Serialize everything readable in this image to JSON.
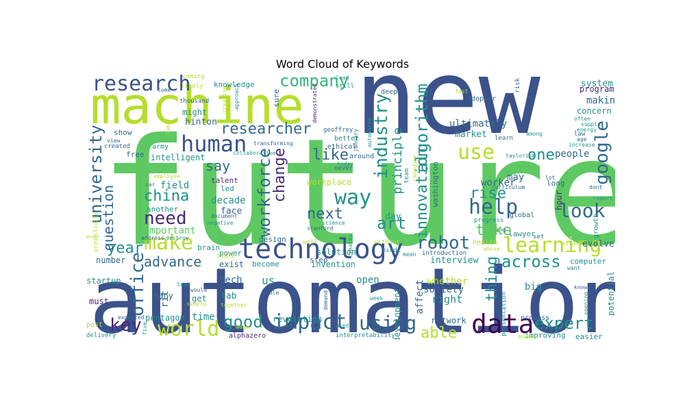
{
  "title": "Word Cloud of Keywords",
  "colors": {
    "navy": "#3b528b",
    "teal": "#21918c",
    "green": "#5ec962",
    "lime": "#b5de2b",
    "purple": "#440154",
    "blue": "#31688e",
    "sea": "#35b779",
    "violet": "#482878",
    "cyan": "#26828e",
    "yellow": "#dde318"
  },
  "words": [
    {
      "text": "future",
      "weight": 100,
      "color": "green"
    },
    {
      "text": "new",
      "weight": 94,
      "color": "navy"
    },
    {
      "text": "automation",
      "weight": 88,
      "color": "navy"
    },
    {
      "text": "machine",
      "weight": 58,
      "color": "lime"
    },
    {
      "text": "technology",
      "weight": 33,
      "color": "navy"
    },
    {
      "text": "research",
      "weight": 30,
      "color": "navy"
    },
    {
      "text": "human",
      "weight": 30,
      "color": "navy"
    },
    {
      "text": "make",
      "weight": 28,
      "color": "lime"
    },
    {
      "text": "data",
      "weight": 34,
      "color": "purple"
    },
    {
      "text": "learning",
      "weight": 27,
      "color": "lime"
    },
    {
      "text": "world",
      "weight": 27,
      "color": "lime"
    },
    {
      "text": "impact",
      "weight": 26,
      "color": "blue"
    },
    {
      "text": "using",
      "weight": 26,
      "color": "blue"
    },
    {
      "text": "help",
      "weight": 26,
      "color": "blue"
    },
    {
      "text": "company",
      "weight": 24,
      "color": "sea"
    },
    {
      "text": "researcher",
      "weight": 24,
      "color": "blue"
    },
    {
      "text": "google",
      "weight": 24,
      "color": "blue"
    },
    {
      "text": "expert",
      "weight": 24,
      "color": "teal"
    },
    {
      "text": "look",
      "weight": 24,
      "color": "blue"
    },
    {
      "text": "robot",
      "weight": 24,
      "color": "blue"
    },
    {
      "text": "industry",
      "weight": 24,
      "color": "teal"
    },
    {
      "text": "algorithm",
      "weight": 22,
      "color": "teal"
    },
    {
      "text": "use",
      "weight": 24,
      "color": "lime"
    },
    {
      "text": "university",
      "weight": 22,
      "color": "blue"
    },
    {
      "text": "workforce",
      "weight": 22,
      "color": "blue"
    },
    {
      "text": "way",
      "weight": 24,
      "color": "teal"
    },
    {
      "text": "need",
      "weight": 22,
      "color": "violet"
    },
    {
      "text": "key",
      "weight": 22,
      "color": "violet"
    },
    {
      "text": "good",
      "weight": 20,
      "color": "teal"
    },
    {
      "text": "office",
      "weight": 20,
      "color": "blue"
    },
    {
      "text": "china",
      "weight": 20,
      "color": "teal"
    },
    {
      "text": "across",
      "weight": 20,
      "color": "teal"
    },
    {
      "text": "art",
      "weight": 18,
      "color": "teal"
    },
    {
      "text": "year",
      "weight": 18,
      "color": "teal"
    },
    {
      "text": "next",
      "weight": 18,
      "color": "blue"
    },
    {
      "text": "change",
      "weight": 18,
      "color": "violet"
    },
    {
      "text": "innovation",
      "weight": 18,
      "color": "teal"
    },
    {
      "text": "take",
      "weight": 18,
      "color": "green"
    },
    {
      "text": "thing",
      "weight": 18,
      "color": "teal"
    },
    {
      "text": "able",
      "weight": 18,
      "color": "lime"
    },
    {
      "text": "rise",
      "weight": 18,
      "color": "teal"
    },
    {
      "text": "like",
      "weight": 18,
      "color": "blue"
    },
    {
      "text": "say",
      "weight": 16,
      "color": "blue"
    },
    {
      "text": "one",
      "weight": 18,
      "color": "teal"
    },
    {
      "text": "advance",
      "weight": 16,
      "color": "blue"
    },
    {
      "text": "question",
      "weight": 16,
      "color": "blue"
    },
    {
      "text": "principle",
      "weight": 14,
      "color": "teal"
    },
    {
      "text": "people",
      "weight": 13,
      "color": "blue"
    },
    {
      "text": "system",
      "weight": 12,
      "color": "teal"
    },
    {
      "text": "program",
      "weight": 11,
      "color": "violet"
    },
    {
      "text": "making",
      "weight": 12,
      "color": "blue"
    },
    {
      "text": "concern",
      "weight": 11,
      "color": "teal"
    },
    {
      "text": "knowledge",
      "weight": 10,
      "color": "teal"
    },
    {
      "text": "ultimately",
      "weight": 12,
      "color": "blue"
    },
    {
      "text": "market",
      "weight": 11,
      "color": "teal"
    },
    {
      "text": "hinton",
      "weight": 11,
      "color": "blue"
    },
    {
      "text": "intelligent",
      "weight": 11,
      "color": "teal"
    },
    {
      "text": "might",
      "weight": 11,
      "color": "teal"
    },
    {
      "text": "show",
      "weight": 10,
      "color": "blue"
    },
    {
      "text": "free",
      "weight": 10,
      "color": "blue"
    },
    {
      "text": "field",
      "weight": 12,
      "color": "teal"
    },
    {
      "text": "talent",
      "weight": 10,
      "color": "violet"
    },
    {
      "text": "led",
      "weight": 10,
      "color": "teal"
    },
    {
      "text": "decade",
      "weight": 12,
      "color": "teal"
    },
    {
      "text": "face",
      "weight": 11,
      "color": "blue"
    },
    {
      "text": "workplace",
      "weight": 11,
      "color": "lime"
    },
    {
      "text": "worker",
      "weight": 12,
      "color": "blue"
    },
    {
      "text": "may",
      "weight": 12,
      "color": "blue"
    },
    {
      "text": "long",
      "weight": 10,
      "color": "blue"
    },
    {
      "text": "hour",
      "weight": 10,
      "color": "violet"
    },
    {
      "text": "day",
      "weight": 12,
      "color": "teal"
    },
    {
      "text": "important",
      "weight": 12,
      "color": "green"
    },
    {
      "text": "another",
      "weight": 10,
      "color": "teal"
    },
    {
      "text": "interview",
      "weight": 12,
      "color": "teal"
    },
    {
      "text": "design",
      "weight": 10,
      "color": "blue"
    },
    {
      "text": "brain",
      "weight": 10,
      "color": "teal"
    },
    {
      "text": "exist",
      "weight": 10,
      "color": "blue"
    },
    {
      "text": "number",
      "weight": 10,
      "color": "blue"
    },
    {
      "text": "become",
      "weight": 10,
      "color": "teal"
    },
    {
      "text": "invention",
      "weight": 10,
      "color": "teal"
    },
    {
      "text": "evolve",
      "weight": 11,
      "color": "blue"
    },
    {
      "text": "computer",
      "weight": 9,
      "color": "teal"
    },
    {
      "text": "tech",
      "weight": 12,
      "color": "blue"
    },
    {
      "text": "startup",
      "weight": 10,
      "color": "teal"
    },
    {
      "text": "must",
      "weight": 10,
      "color": "violet"
    },
    {
      "text": "lab",
      "weight": 12,
      "color": "teal"
    },
    {
      "text": "open",
      "weight": 13,
      "color": "teal"
    },
    {
      "text": "us",
      "weight": 13,
      "color": "teal"
    },
    {
      "text": "whether",
      "weight": 12,
      "color": "lime"
    },
    {
      "text": "society",
      "weight": 12,
      "color": "blue"
    },
    {
      "text": "right",
      "weight": 13,
      "color": "teal"
    },
    {
      "text": "big",
      "weight": 12,
      "color": "teal"
    },
    {
      "text": "potential",
      "weight": 10,
      "color": "teal"
    },
    {
      "text": "development",
      "weight": 11,
      "color": "teal"
    },
    {
      "text": "affect",
      "weight": 11,
      "color": "blue"
    },
    {
      "text": "rit",
      "weight": 11,
      "color": "blue"
    },
    {
      "text": "get",
      "weight": 11,
      "color": "teal"
    },
    {
      "text": "time",
      "weight": 11,
      "color": "teal"
    },
    {
      "text": "pentagon",
      "weight": 11,
      "color": "teal"
    },
    {
      "text": "revolution",
      "weight": 10,
      "color": "teal"
    },
    {
      "text": "network",
      "weight": 10,
      "color": "blue"
    },
    {
      "text": "improving",
      "weight": 9,
      "color": "teal"
    },
    {
      "text": "easier",
      "weight": 9,
      "color": "teal"
    },
    {
      "text": "alphazero",
      "weight": 8,
      "color": "violet"
    },
    {
      "text": "interpretability",
      "weight": 7,
      "color": "teal"
    },
    {
      "text": "process",
      "weight": 8,
      "color": "blue"
    },
    {
      "text": "many",
      "weight": 10,
      "color": "blue"
    },
    {
      "text": "post",
      "weight": 8,
      "color": "lime"
    },
    {
      "text": "delivery",
      "weight": 8,
      "color": "teal"
    },
    {
      "text": "solution",
      "weight": 9,
      "color": "teal"
    },
    {
      "text": "step",
      "weight": 9,
      "color": "blue"
    },
    {
      "text": "better",
      "weight": 8,
      "color": "teal"
    },
    {
      "text": "ethical",
      "weight": 8,
      "color": "blue"
    },
    {
      "text": "around",
      "weight": 9,
      "color": "blue"
    },
    {
      "text": "never",
      "weight": 8,
      "color": "blue"
    },
    {
      "text": "today",
      "weight": 7,
      "color": "teal"
    },
    {
      "text": "still",
      "weight": 8,
      "color": "teal"
    },
    {
      "text": "sure",
      "weight": 9,
      "color": "blue"
    },
    {
      "text": "deep",
      "weight": 8,
      "color": "blue"
    },
    {
      "text": "adopter",
      "weight": 8,
      "color": "blue"
    },
    {
      "text": "fast",
      "weight": 7,
      "color": "lime"
    },
    {
      "text": "army",
      "weight": 8,
      "color": "teal"
    },
    {
      "text": "created",
      "weight": 7,
      "color": "blue"
    },
    {
      "text": "coming",
      "weight": 8,
      "color": "lime"
    },
    {
      "text": "thousand",
      "weight": 7,
      "color": "blue"
    },
    {
      "text": "geoffrey",
      "weight": 7,
      "color": "blue"
    },
    {
      "text": "power",
      "weight": 9,
      "color": "teal"
    },
    {
      "text": "hindi",
      "weight": 7,
      "color": "teal"
    },
    {
      "text": "global",
      "weight": 8,
      "color": "blue"
    },
    {
      "text": "lawyer",
      "weight": 8,
      "color": "teal"
    },
    {
      "text": "law",
      "weight": 8,
      "color": "blue"
    },
    {
      "text": "state",
      "weight": 8,
      "color": "lime"
    },
    {
      "text": "growth",
      "weight": 8,
      "color": "teal"
    },
    {
      "text": "set",
      "weight": 8,
      "color": "blue"
    },
    {
      "text": "report",
      "weight": 7,
      "color": "teal"
    },
    {
      "text": "dont",
      "weight": 7,
      "color": "blue"
    },
    {
      "text": "health",
      "weight": 8,
      "color": "lime"
    },
    {
      "text": "progress",
      "weight": 8,
      "color": "teal"
    },
    {
      "text": "learn",
      "weight": 7,
      "color": "blue"
    },
    {
      "text": "washington",
      "weight": 10,
      "color": "blue"
    },
    {
      "text": "collaborative",
      "weight": 7,
      "color": "teal"
    },
    {
      "text": "transforming",
      "weight": 7,
      "color": "blue"
    },
    {
      "text": "employee",
      "weight": 7,
      "color": "lime"
    },
    {
      "text": "car",
      "weight": 7,
      "color": "blue"
    },
    {
      "text": "document",
      "weight": 7,
      "color": "blue"
    },
    {
      "text": "negative",
      "weight": 7,
      "color": "teal"
    },
    {
      "text": "address",
      "weight": 7,
      "color": "blue"
    },
    {
      "text": "destroy",
      "weight": 7,
      "color": "teal"
    },
    {
      "text": "scale",
      "weight": 8,
      "color": "lime"
    },
    {
      "text": "well",
      "weight": 8,
      "color": "lime"
    },
    {
      "text": "without",
      "weight": 7,
      "color": "lime"
    },
    {
      "text": "science",
      "weight": 7,
      "color": "teal"
    },
    {
      "text": "stanford",
      "weight": 7,
      "color": "blue"
    },
    {
      "text": "introduction",
      "weight": 8,
      "color": "blue"
    },
    {
      "text": "mean",
      "weight": 7,
      "color": "teal"
    },
    {
      "text": "presentation",
      "weight": 8,
      "color": "teal"
    },
    {
      "text": "task",
      "weight": 7,
      "color": "teal"
    },
    {
      "text": "would",
      "weight": 7,
      "color": "blue"
    },
    {
      "text": "simply",
      "weight": 7,
      "color": "lime"
    },
    {
      "text": "together",
      "weight": 7,
      "color": "lime"
    },
    {
      "text": "role",
      "weight": 7,
      "color": "blue"
    },
    {
      "text": "week",
      "weight": 7,
      "color": "teal"
    },
    {
      "text": "demand",
      "weight": 7,
      "color": "blue"
    },
    {
      "text": "used",
      "weight": 7,
      "color": "teal"
    },
    {
      "text": "expected",
      "weight": 7,
      "color": "blue"
    },
    {
      "text": "five",
      "weight": 7,
      "color": "teal"
    },
    {
      "text": "want",
      "weight": 7,
      "color": "teal"
    },
    {
      "text": "know",
      "weight": 7,
      "color": "blue"
    },
    {
      "text": "opening",
      "weight": 7,
      "color": "teal"
    },
    {
      "text": "among",
      "weight": 7,
      "color": "teal"
    },
    {
      "text": "lot",
      "weight": 7,
      "color": "blue"
    },
    {
      "text": "age",
      "weight": 7,
      "color": "blue"
    },
    {
      "text": "energy",
      "weight": 7,
      "color": "teal"
    },
    {
      "text": "increase",
      "weight": 7,
      "color": "teal"
    },
    {
      "text": "supply",
      "weight": 7,
      "color": "teal"
    },
    {
      "text": "often",
      "weight": 7,
      "color": "teal"
    },
    {
      "text": "taylorism",
      "weight": 7,
      "color": "teal"
    },
    {
      "text": "curriculum",
      "weight": 7,
      "color": "blue"
    },
    {
      "text": "risk",
      "weight": 7,
      "color": "blue"
    },
    {
      "text": "lead",
      "weight": 7,
      "color": "teal"
    },
    {
      "text": "likely",
      "weight": 7,
      "color": "lime"
    },
    {
      "text": "come",
      "weight": 7,
      "color": "blue"
    },
    {
      "text": "view",
      "weight": 7,
      "color": "blue"
    },
    {
      "text": "wage",
      "weight": 7,
      "color": "lime"
    },
    {
      "text": "productivity",
      "weight": 7,
      "color": "lime"
    },
    {
      "text": "creative",
      "weight": 7,
      "color": "lime"
    },
    {
      "text": "approach",
      "weight": 7,
      "color": "teal"
    },
    {
      "text": "labor",
      "weight": 7,
      "color": "lime"
    },
    {
      "text": "demonstrated",
      "weight": 7,
      "color": "violet"
    },
    {
      "text": "january",
      "weight": 7,
      "color": "blue"
    },
    {
      "text": "automated",
      "weight": 7,
      "color": "teal"
    },
    {
      "text": "creates",
      "weight": 7,
      "color": "teal"
    },
    {
      "text": "laboratory",
      "weight": 7,
      "color": "blue"
    },
    {
      "text": "team",
      "weight": 8,
      "color": "teal"
    },
    {
      "text": "canadian",
      "weight": 7,
      "color": "lime"
    },
    {
      "text": "modern",
      "weight": 7,
      "color": "lime"
    },
    {
      "text": "whose",
      "weight": 7,
      "color": "lime"
    },
    {
      "text": "ing",
      "weight": 7,
      "color": "blue"
    },
    {
      "text": "ever",
      "weight": 7,
      "color": "lime"
    }
  ]
}
